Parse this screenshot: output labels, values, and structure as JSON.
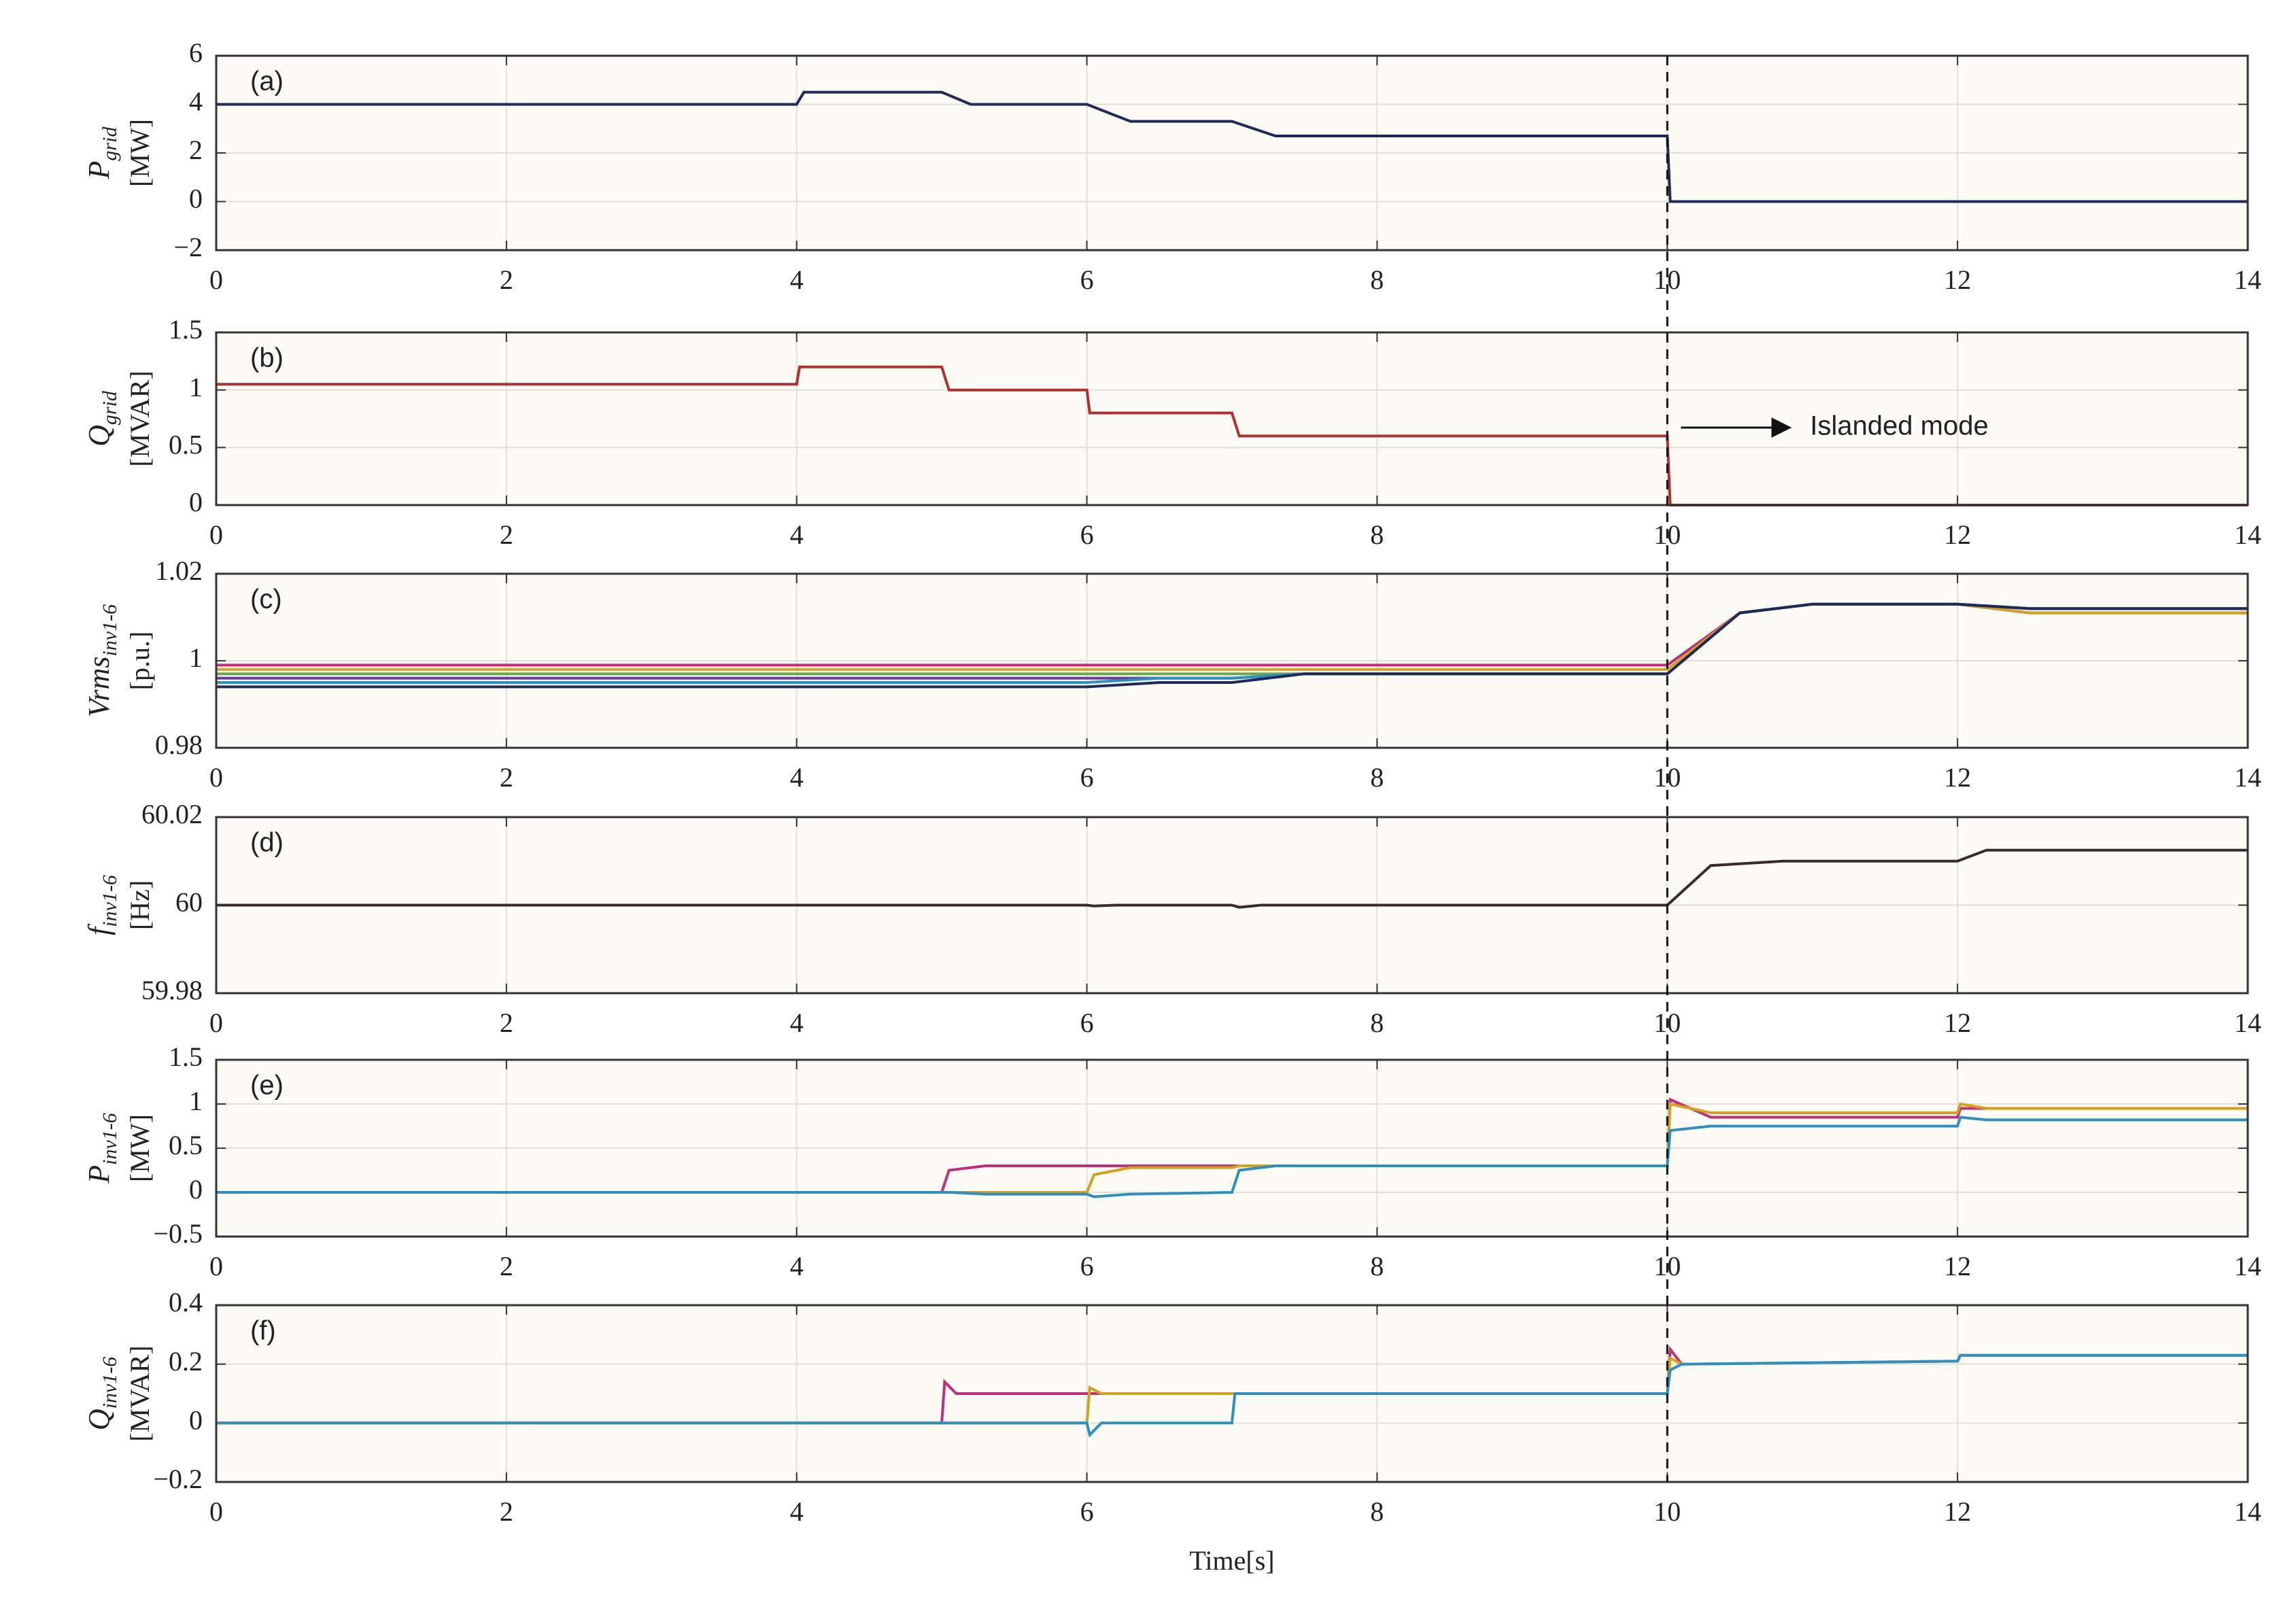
{
  "chart_data": [
    {
      "type": "line",
      "label": "(a)",
      "ylabel": {
        "main": "P",
        "sub": "grid",
        "unit": "[MW]"
      },
      "x": [
        0,
        4,
        4.05,
        5,
        5.2,
        6,
        6.3,
        7,
        7.3,
        10,
        10.02,
        14
      ],
      "series": [
        {
          "color": "#1f2a5a",
          "values": [
            4,
            4,
            4.5,
            4.5,
            4,
            4,
            3.3,
            3.3,
            2.7,
            2.7,
            0,
            0
          ]
        }
      ],
      "xlim": [
        0,
        14
      ],
      "xticks": [
        0,
        2,
        4,
        6,
        8,
        10,
        12,
        14
      ],
      "ylim": [
        -2,
        6
      ],
      "yticks": [
        {
          "value": -2,
          "label": "−2"
        },
        0,
        2,
        4,
        6
      ],
      "grid": true,
      "vline": 10
    },
    {
      "type": "line",
      "label": "(b)",
      "ylabel": {
        "main": "Q",
        "sub": "grid",
        "unit": "[MVAR]"
      },
      "annotation": "Islanded mode",
      "x": [
        0,
        4,
        4.02,
        5,
        5.05,
        6,
        6.02,
        7,
        7.05,
        10,
        10.02,
        14
      ],
      "series": [
        {
          "color": "#b03030",
          "values": [
            1.05,
            1.05,
            1.2,
            1.2,
            1.0,
            1.0,
            0.8,
            0.8,
            0.6,
            0.6,
            0,
            0
          ]
        }
      ],
      "xlim": [
        0,
        14
      ],
      "xticks": [
        0,
        2,
        4,
        6,
        8,
        10,
        12,
        14
      ],
      "ylim": [
        0,
        1.5
      ],
      "yticks": [
        0,
        0.5,
        1,
        1.5
      ],
      "grid": true
    },
    {
      "type": "line",
      "label": "(c)",
      "ylabel": {
        "main": "Vrms",
        "sub": "inv1-6",
        "unit": "[p.u.]"
      },
      "x": [
        0,
        6,
        6.5,
        7,
        7.5,
        10,
        10.5,
        11,
        12,
        12.5,
        14
      ],
      "series": [
        {
          "color": "#c0307a",
          "values": [
            0.999,
            0.999,
            0.999,
            0.999,
            0.999,
            0.999,
            1.011,
            1.013,
            1.013,
            1.011,
            1.011
          ]
        },
        {
          "color": "#d4a020",
          "values": [
            0.998,
            0.998,
            0.998,
            0.998,
            0.998,
            0.998,
            1.011,
            1.013,
            1.013,
            1.011,
            1.011
          ]
        },
        {
          "color": "#6aa84f",
          "values": [
            0.997,
            0.997,
            0.997,
            0.997,
            0.997,
            0.997,
            1.011,
            1.013,
            1.013,
            1.012,
            1.012
          ]
        },
        {
          "color": "#6a3d9a",
          "values": [
            0.996,
            0.996,
            0.996,
            0.996,
            0.997,
            0.997,
            1.011,
            1.013,
            1.013,
            1.012,
            1.012
          ]
        },
        {
          "color": "#2f8fbf",
          "values": [
            0.995,
            0.995,
            0.996,
            0.996,
            0.997,
            0.997,
            1.011,
            1.013,
            1.013,
            1.012,
            1.012
          ]
        },
        {
          "color": "#1f2a5a",
          "values": [
            0.994,
            0.994,
            0.995,
            0.995,
            0.997,
            0.997,
            1.011,
            1.013,
            1.013,
            1.012,
            1.012
          ]
        }
      ],
      "xlim": [
        0,
        14
      ],
      "xticks": [
        0,
        2,
        4,
        6,
        8,
        10,
        12,
        14
      ],
      "ylim": [
        0.98,
        1.02
      ],
      "yticks": [
        0.98,
        1,
        1.02
      ],
      "grid": true
    },
    {
      "type": "line",
      "label": "(d)",
      "ylabel": {
        "main": "f",
        "sub": "inv1-6",
        "unit": "[Hz]"
      },
      "x": [
        0,
        6,
        6.05,
        6.2,
        7,
        7.05,
        7.2,
        10,
        10.3,
        10.8,
        12,
        12.2,
        14
      ],
      "series": [
        {
          "color": "#3a2a2a",
          "values": [
            60,
            60,
            59.9998,
            60,
            60,
            59.9995,
            60,
            60,
            60.009,
            60.01,
            60.01,
            60.0125,
            60.0125
          ]
        }
      ],
      "xlim": [
        0,
        14
      ],
      "xticks": [
        0,
        2,
        4,
        6,
        8,
        10,
        12,
        14
      ],
      "ylim": [
        59.98,
        60.02
      ],
      "yticks": [
        59.98,
        60,
        60.02
      ],
      "grid": true
    },
    {
      "type": "line",
      "label": "(e)",
      "ylabel": {
        "main": "P",
        "sub": "inv1-6",
        "unit": "[MW]"
      },
      "x": [
        0,
        5,
        5.05,
        5.3,
        6,
        6.05,
        6.3,
        7,
        7.05,
        7.3,
        10,
        10.02,
        10.3,
        12,
        12.02,
        12.2,
        14
      ],
      "series": [
        {
          "color": "#c0307a",
          "values": [
            0,
            0,
            0.25,
            0.3,
            0.3,
            0.3,
            0.3,
            0.3,
            0.3,
            0.3,
            0.3,
            1.05,
            0.85,
            0.85,
            0.95,
            0.95,
            0.95
          ]
        },
        {
          "color": "#d4a020",
          "values": [
            0,
            0,
            0,
            0,
            0,
            0.2,
            0.28,
            0.28,
            0.3,
            0.3,
            0.3,
            1.0,
            0.9,
            0.9,
            1.0,
            0.95,
            0.95
          ]
        },
        {
          "color": "#2f8fbf",
          "values": [
            0,
            0,
            0,
            -0.02,
            -0.02,
            -0.05,
            -0.02,
            0,
            0.25,
            0.3,
            0.3,
            0.7,
            0.75,
            0.75,
            0.85,
            0.82,
            0.82
          ]
        }
      ],
      "xlim": [
        0,
        14
      ],
      "xticks": [
        0,
        2,
        4,
        6,
        8,
        10,
        12,
        14
      ],
      "ylim": [
        -0.5,
        1.5
      ],
      "yticks": [
        {
          "value": -0.5,
          "label": "−0.5"
        },
        0,
        0.5,
        1,
        1.5
      ],
      "grid": true
    },
    {
      "type": "line",
      "label": "(f)",
      "ylabel": {
        "main": "Q",
        "sub": "inv1-6",
        "unit": "[MVAR]"
      },
      "xlabel": "Time[s]",
      "x": [
        0,
        5,
        5.02,
        5.1,
        6,
        6.02,
        6.1,
        7,
        7.02,
        7.2,
        10,
        10.02,
        10.1,
        12,
        12.02,
        12.1,
        14
      ],
      "series": [
        {
          "color": "#c0307a",
          "values": [
            0,
            0,
            0.14,
            0.1,
            0.1,
            0.1,
            0.1,
            0.1,
            0.1,
            0.1,
            0.1,
            0.25,
            0.2,
            0.21,
            0.23,
            0.23,
            0.23
          ]
        },
        {
          "color": "#d4a020",
          "values": [
            0,
            0,
            0,
            0,
            0,
            0.12,
            0.1,
            0.1,
            0.1,
            0.1,
            0.1,
            0.22,
            0.2,
            0.21,
            0.23,
            0.23,
            0.23
          ]
        },
        {
          "color": "#2f8fbf",
          "values": [
            0,
            0,
            0,
            0,
            0,
            -0.04,
            0,
            0,
            0.1,
            0.1,
            0.1,
            0.18,
            0.2,
            0.21,
            0.23,
            0.23,
            0.23
          ]
        }
      ],
      "xlim": [
        0,
        14
      ],
      "xticks": [
        0,
        2,
        4,
        6,
        8,
        10,
        12,
        14
      ],
      "ylim": [
        -0.2,
        0.4
      ],
      "yticks": [
        {
          "value": -0.2,
          "label": "−0.2"
        },
        0,
        0.2,
        0.4
      ],
      "grid": true
    }
  ]
}
